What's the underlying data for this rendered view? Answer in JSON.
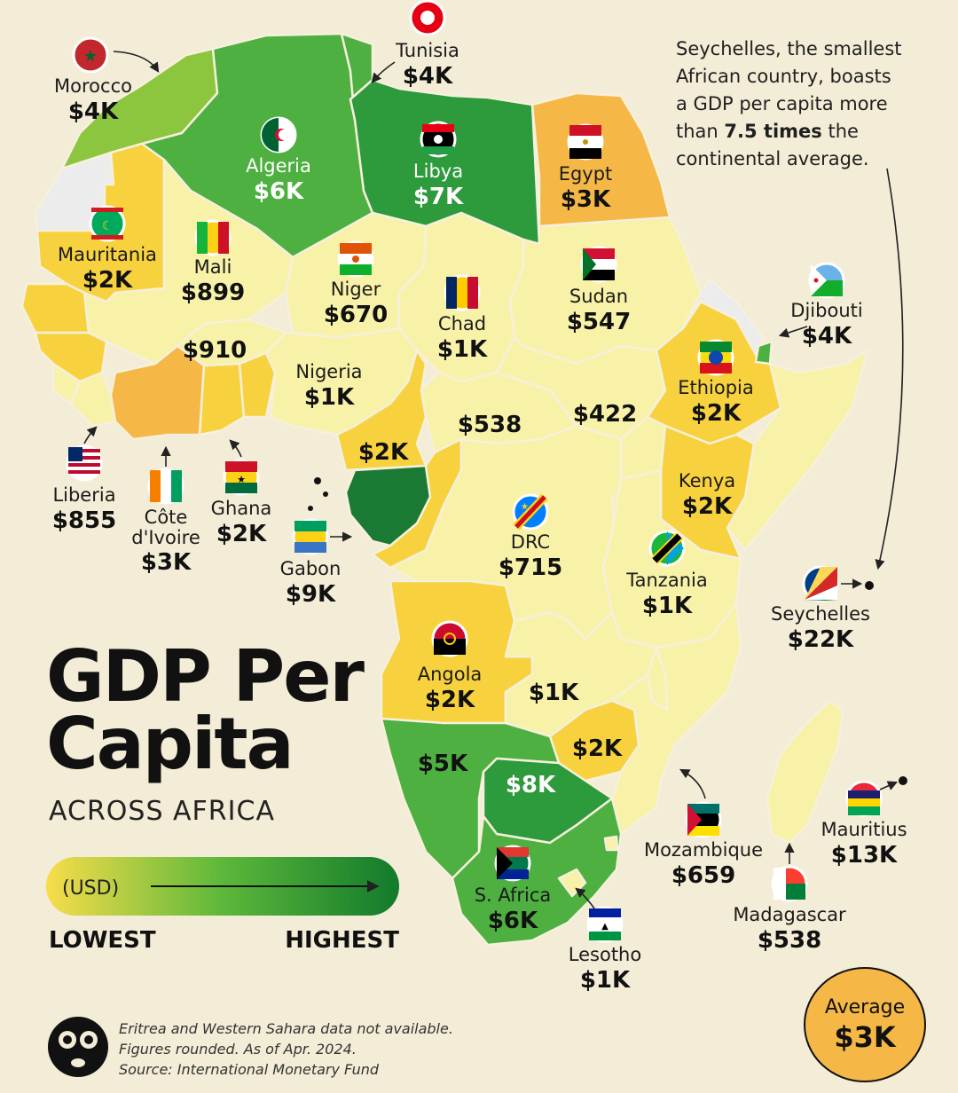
{
  "title": {
    "line1": "GDP Per",
    "line2": "Capita",
    "subtitle": "ACROSS AFRICA"
  },
  "legend": {
    "unit": "(USD)",
    "low": "LOWEST",
    "high": "HIGHEST",
    "gradient": [
      "#f7dd4a",
      "#5cb83a",
      "#127a2c"
    ]
  },
  "note": {
    "line1": "Seychelles, the smallest",
    "line2": "African country, boasts",
    "line3": "a GDP per capita more",
    "line4_pre": "than ",
    "line4_bold": "7.5 times",
    "line4_post": " the",
    "line5": "continental average."
  },
  "average": {
    "label": "Average",
    "value": "$3K"
  },
  "footer": {
    "line1": "Eritrea and Western Sahara data not available.",
    "line2": "Figures rounded. As of Apr. 2024.",
    "line3": "Source: International Monetary Fund"
  },
  "colors": {
    "background": "#f3ecd6",
    "pale": "#f8f1a8",
    "yellow": "#f7d23e",
    "orange": "#f5b746",
    "light_green": "#8cc63f",
    "mid_green": "#4db040",
    "dark_green": "#2d9a3c",
    "darkest_green": "#1a7a33",
    "no_data": "#ececec"
  },
  "countries": [
    {
      "id": "morocco",
      "name": "Morocco",
      "value": "$4K"
    },
    {
      "id": "tunisia",
      "name": "Tunisia",
      "value": "$4K"
    },
    {
      "id": "algeria",
      "name": "Algeria",
      "value": "$6K"
    },
    {
      "id": "libya",
      "name": "Libya",
      "value": "$7K"
    },
    {
      "id": "egypt",
      "name": "Egypt",
      "value": "$3K"
    },
    {
      "id": "mauritania",
      "name": "Mauritania",
      "value": "$2K"
    },
    {
      "id": "mali",
      "name": "Mali",
      "value": "$899"
    },
    {
      "id": "niger",
      "name": "Niger",
      "value": "$670"
    },
    {
      "id": "chad",
      "name": "Chad",
      "value": "$1K"
    },
    {
      "id": "sudan",
      "name": "Sudan",
      "value": "$547"
    },
    {
      "id": "djibouti",
      "name": "Djibouti",
      "value": "$4K"
    },
    {
      "id": "burkina",
      "name": "",
      "value": "$910"
    },
    {
      "id": "nigeria",
      "name": "Nigeria",
      "value": "$1K"
    },
    {
      "id": "ethiopia",
      "name": "Ethiopia",
      "value": "$2K"
    },
    {
      "id": "car",
      "name": "",
      "value": "$538"
    },
    {
      "id": "south_sudan",
      "name": "",
      "value": "$422"
    },
    {
      "id": "cameroon",
      "name": "",
      "value": "$2K"
    },
    {
      "id": "liberia",
      "name": "Liberia",
      "value": "$855"
    },
    {
      "id": "cote_divoire",
      "name": "Côte d'Ivoire",
      "value": "$3K"
    },
    {
      "id": "ghana",
      "name": "Ghana",
      "value": "$2K"
    },
    {
      "id": "gabon",
      "name": "Gabon",
      "value": "$9K"
    },
    {
      "id": "kenya",
      "name": "Kenya",
      "value": "$2K"
    },
    {
      "id": "drc",
      "name": "DRC",
      "value": "$715"
    },
    {
      "id": "tanzania",
      "name": "Tanzania",
      "value": "$1K"
    },
    {
      "id": "seychelles",
      "name": "Seychelles",
      "value": "$22K"
    },
    {
      "id": "angola",
      "name": "Angola",
      "value": "$2K"
    },
    {
      "id": "zambia",
      "name": "",
      "value": "$1K"
    },
    {
      "id": "zimbabwe",
      "name": "",
      "value": "$2K"
    },
    {
      "id": "namibia",
      "name": "",
      "value": "$5K"
    },
    {
      "id": "botswana",
      "name": "",
      "value": "$8K"
    },
    {
      "id": "mozambique",
      "name": "Mozambique",
      "value": "$659"
    },
    {
      "id": "mauritius",
      "name": "Mauritius",
      "value": "$13K"
    },
    {
      "id": "south_africa",
      "name": "S. Africa",
      "value": "$6K"
    },
    {
      "id": "madagascar",
      "name": "Madagascar",
      "value": "$538"
    },
    {
      "id": "lesotho",
      "name": "Lesotho",
      "value": "$1K"
    }
  ]
}
